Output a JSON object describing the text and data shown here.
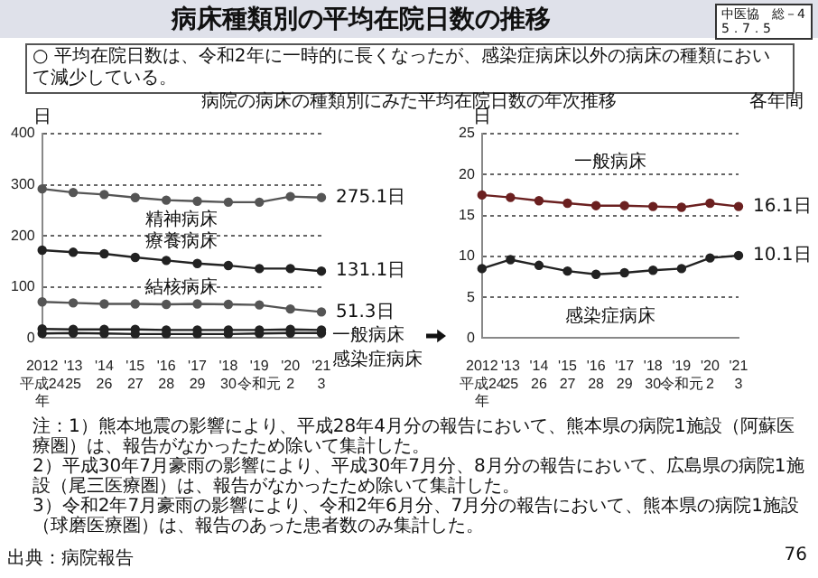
{
  "chart_data": [
    {
      "type": "line",
      "title": "病床種類別の平均在院日数の推移",
      "subtitle": "○ 平均在院日数は、令和2年に一時的に長くなったが、感染症病床以外の病床の種類において減少している。",
      "ylabel": "日",
      "categories": [
        "2012\n平成24\n年",
        "'13\n25",
        "'14\n26",
        "'15\n27",
        "'16\n28",
        "'17\n29",
        "'18\n30",
        "'19\n令和元",
        "'20\n2",
        "'21\n3"
      ],
      "ylim": [
        0,
        400
      ],
      "yticks": [
        0,
        100,
        200,
        300,
        400
      ],
      "grid": "y",
      "marker": "circle",
      "line_style": "solid",
      "series": [
        {
          "name": "精神病床",
          "color": "#555555",
          "values": [
            292,
            285,
            281,
            275,
            270,
            268,
            266,
            266,
            277,
            275.1
          ],
          "value_labels": [
            null,
            null,
            null,
            null,
            null,
            null,
            null,
            null,
            null,
            "275.1日"
          ]
        },
        {
          "name": "療養病床",
          "color": "#222222",
          "values": [
            172,
            168,
            165,
            158,
            152,
            146,
            142,
            136,
            136,
            131.1
          ],
          "value_labels": [
            null,
            null,
            null,
            null,
            null,
            null,
            null,
            null,
            null,
            "131.1日"
          ]
        },
        {
          "name": "結核病床",
          "color": "#555555",
          "values": [
            71,
            69,
            67,
            67,
            66,
            67,
            66,
            65,
            57,
            51.3
          ],
          "value_labels": [
            null,
            null,
            null,
            null,
            null,
            null,
            null,
            null,
            null,
            "51.3日"
          ]
        },
        {
          "name": "一般病床",
          "color": "#222222",
          "values": [
            18,
            17,
            17,
            17,
            16,
            16,
            16,
            16,
            17,
            16
          ]
        },
        {
          "name": "感染症病床",
          "color": "#222222",
          "values": [
            9,
            10,
            9,
            8,
            8,
            8,
            8,
            9,
            10,
            10
          ]
        }
      ],
      "annotations": [
        "中医協　総－4\n5．7．5",
        "病院の病床の種類別にみた平均在院日数の年次推移",
        "注：1）熊本地震の影響により、平成28年4月分の報告において、熊本県の病院1施設（阿蘇医療圏）は、報告がなかったため除いて集計した。",
        "2）平成30年7月豪雨の影響により、平成30年7月分、8月分の報告において、広島県の病院1施設（尾三医療圏）は、報告がなかったため除いて集計した。",
        "3）令和2年7月豪雨の影響により、令和2年6月分、7月分の報告において、熊本県の病院1施設（球磨医療圏）は、報告のあった患者数のみ集計した。",
        "出典：病院報告",
        "76"
      ]
    },
    {
      "type": "line",
      "ylabel": "日",
      "categories": [
        "2012\n平成24\n年",
        "'13\n25",
        "'14\n26",
        "'15\n27",
        "'16\n28",
        "'17\n29",
        "'18\n30",
        "'19\n令和元",
        "'20\n2",
        "'21\n3"
      ],
      "ylim": [
        0,
        25
      ],
      "yticks": [
        0,
        5,
        10,
        15,
        20,
        25
      ],
      "grid": "y",
      "marker": "circle",
      "line_style": "solid",
      "series": [
        {
          "name": "一般病床",
          "color": "#6b2020",
          "values": [
            17.5,
            17.2,
            16.8,
            16.5,
            16.2,
            16.2,
            16.1,
            16.0,
            16.5,
            16.1
          ],
          "value_labels": [
            null,
            null,
            null,
            null,
            null,
            null,
            null,
            null,
            null,
            "16.1日"
          ]
        },
        {
          "name": "感染症病床",
          "color": "#222222",
          "values": [
            8.5,
            9.6,
            8.9,
            8.2,
            7.8,
            8.0,
            8.3,
            8.5,
            9.8,
            10.1
          ],
          "value_labels": [
            null,
            null,
            null,
            null,
            null,
            null,
            null,
            null,
            null,
            "10.1日"
          ]
        }
      ],
      "annotations": [
        "各年間"
      ]
    }
  ]
}
